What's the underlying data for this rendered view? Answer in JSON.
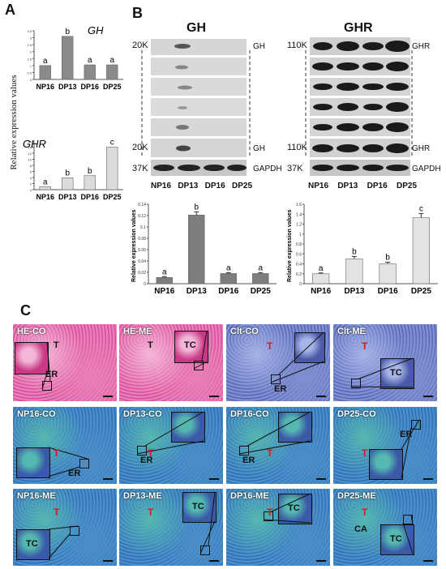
{
  "panels": {
    "a": "A",
    "b": "B",
    "c": "C"
  },
  "panelA": {
    "ylabel": "Relative expression values",
    "gh": {
      "title": "GH",
      "chart_data": {
        "type": "bar",
        "categories": [
          "NP16",
          "DP13",
          "DP16",
          "DP25"
        ],
        "values": [
          1.0,
          3.1,
          1.05,
          1.05
        ],
        "letters": [
          "a",
          "b",
          "a",
          "a"
        ],
        "ylim": [
          0,
          3.5
        ],
        "ticks": [
          "0",
          "0.5",
          "1",
          "1.5",
          "2",
          "2.5",
          "3",
          "3.5"
        ]
      }
    },
    "ghr": {
      "title": "GHR",
      "chart_data": {
        "type": "bar",
        "categories": [
          "NP16",
          "DP13",
          "DP16",
          "DP25"
        ],
        "values": [
          1.0,
          3.9,
          4.6,
          14.0
        ],
        "letters": [
          "a",
          "b",
          "b",
          "c"
        ],
        "ylim": [
          0,
          16
        ],
        "ticks": [
          "0",
          "2",
          "4",
          "6",
          "8",
          "10",
          "12",
          "14",
          "16"
        ]
      }
    }
  },
  "panelB": {
    "gh_title": "GH",
    "ghr_title": "GHR",
    "gh_left": {
      "top": "20K",
      "bottom": "20K",
      "gapdh": "37K"
    },
    "gh_right": {
      "top": "GH",
      "bottom": "GH",
      "gapdh": "GAPDH"
    },
    "ghr_left": {
      "top": "110K",
      "bottom": "110K",
      "gapdh": "37K"
    },
    "ghr_right": {
      "top": "GHR",
      "bottom": "GHR",
      "gapdh": "GAPDH"
    },
    "lane_labels": [
      "NP16",
      "DP13",
      "DP16",
      "DP25"
    ],
    "chart_gh": {
      "type": "bar",
      "categories": [
        "NP16",
        "DP13",
        "DP16",
        "DP25"
      ],
      "values": [
        0.011,
        0.121,
        0.018,
        0.018
      ],
      "letters": [
        "a",
        "b",
        "a",
        "a"
      ],
      "ylim": [
        0,
        0.14
      ],
      "ticks": [
        "0",
        "0.02",
        "0.04",
        "0.06",
        "0.08",
        "0.1",
        "0.12",
        "0.14"
      ],
      "ylabel": "Relative expression values"
    },
    "chart_ghr": {
      "type": "bar",
      "categories": [
        "NP16",
        "DP13",
        "DP16",
        "DP25"
      ],
      "values": [
        0.2,
        0.5,
        0.4,
        1.33
      ],
      "letters": [
        "a",
        "b",
        "b",
        "c"
      ],
      "ylim": [
        0,
        1.6
      ],
      "ticks": [
        "0",
        "0.2",
        "0.4",
        "0.6",
        "0.8",
        "1",
        "1.2",
        "1.4",
        "1.6"
      ],
      "ylabel": "Relative expression values"
    }
  },
  "panelC": {
    "tiles": [
      {
        "label": "HE-CO",
        "a1": "T",
        "a2": "ER"
      },
      {
        "label": "HE-ME",
        "a1": "T",
        "a2": "TC"
      },
      {
        "label": "Clt-CO",
        "a1": "T",
        "a2": "ER"
      },
      {
        "label": "Clt-ME",
        "a1": "T",
        "a2": "TC"
      },
      {
        "label": "NP16-CO",
        "a1": "T",
        "a2": "ER"
      },
      {
        "label": "DP13-CO",
        "a1": "T",
        "a2": "ER"
      },
      {
        "label": "DP16-CO",
        "a1": "T",
        "a2": "ER"
      },
      {
        "label": "DP25-CO",
        "a1": "T",
        "a2": "ER"
      },
      {
        "label": "NP16-ME",
        "a1": "T",
        "a2": "TC"
      },
      {
        "label": "DP13-ME",
        "a1": "T",
        "a2": "TC"
      },
      {
        "label": "DP16-ME",
        "a1": "T",
        "a2": "TC"
      },
      {
        "label": "DP25-ME",
        "a1": "T",
        "a2": "TC",
        "a3": "CA"
      }
    ]
  }
}
